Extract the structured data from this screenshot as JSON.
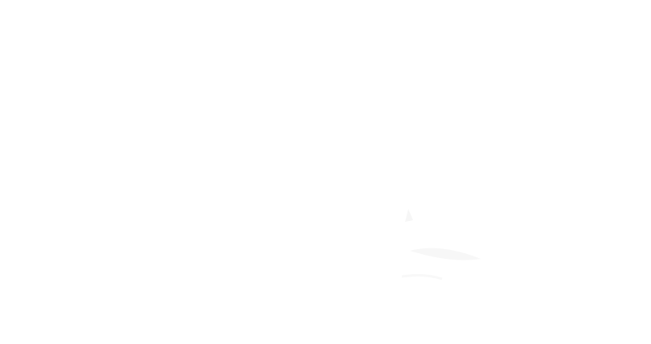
{
  "screen": {
    "background": "#ffffff",
    "faint_text": "",
    "illustration": "faint-sailboat-icon"
  }
}
